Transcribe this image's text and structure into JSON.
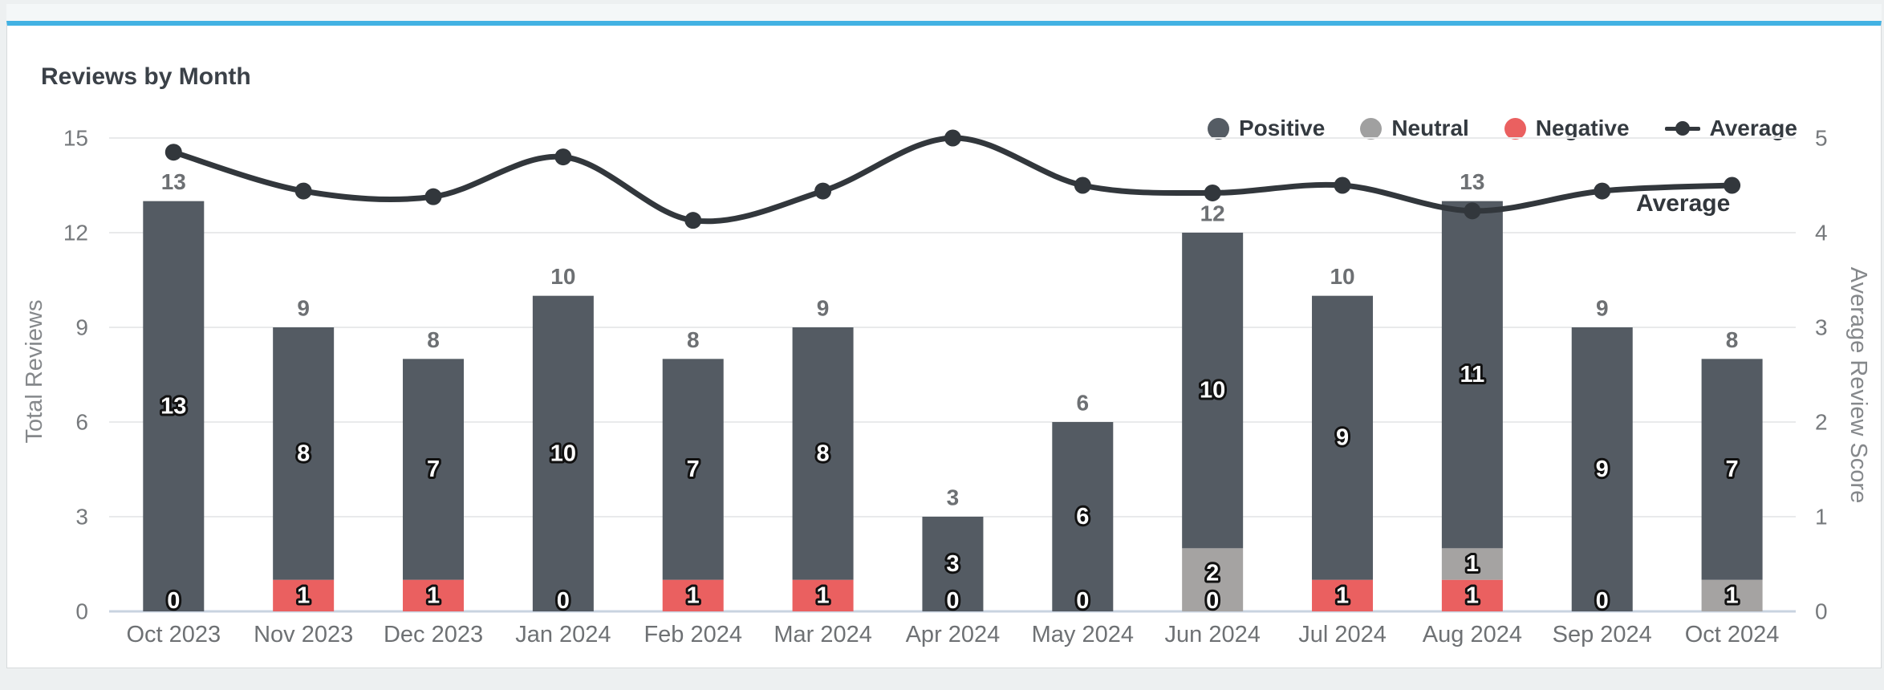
{
  "page": {
    "background": "#edf0f1"
  },
  "card": {
    "title": "Reviews by Month",
    "accent_color": "#42b2e3",
    "background": "#ffffff",
    "border_color": "#d7dadc"
  },
  "legend": {
    "items": [
      {
        "label": "Positive",
        "marker": "circle",
        "color": "#555c64"
      },
      {
        "label": "Neutral",
        "marker": "circle",
        "color": "#a0a0a0"
      },
      {
        "label": "Negative",
        "marker": "circle",
        "color": "#ea6060"
      },
      {
        "label": "Average",
        "marker": "line-dot",
        "color": "#32373c"
      }
    ]
  },
  "chart_data": {
    "type": "bar",
    "subtype": "stacked-bars-with-line-overlay",
    "title": "Reviews by Month",
    "categories": [
      "Oct 2023",
      "Nov 2023",
      "Dec 2023",
      "Jan 2024",
      "Feb 2024",
      "Mar 2024",
      "Apr 2024",
      "May 2024",
      "Jun 2024",
      "Jul 2024",
      "Aug 2024",
      "Sep 2024",
      "Oct 2024"
    ],
    "series": [
      {
        "name": "Positive",
        "color": "#545b63",
        "values": [
          13,
          8,
          7,
          10,
          7,
          8,
          3,
          6,
          10,
          9,
          11,
          9,
          7
        ]
      },
      {
        "name": "Neutral",
        "color": "#a5a3a2",
        "values": [
          0,
          0,
          0,
          0,
          0,
          0,
          0,
          0,
          2,
          0,
          1,
          0,
          1
        ]
      },
      {
        "name": "Negative",
        "color": "#ea6060",
        "values": [
          0,
          1,
          1,
          0,
          1,
          1,
          0,
          0,
          0,
          1,
          1,
          0,
          0
        ]
      }
    ],
    "stack_order_bottom_to_top": [
      "Negative",
      "Neutral",
      "Positive"
    ],
    "totals": [
      13,
      9,
      8,
      10,
      8,
      9,
      3,
      6,
      12,
      10,
      13,
      9,
      8
    ],
    "line_series": {
      "name": "Average",
      "color": "#32373c",
      "values": [
        4.85,
        4.44,
        4.38,
        4.8,
        4.13,
        4.44,
        5.0,
        4.5,
        4.42,
        4.5,
        4.23,
        4.44,
        4.5
      ],
      "end_label": "Average"
    },
    "neg_zero_label_shown": [
      true,
      false,
      false,
      true,
      false,
      false,
      true,
      true,
      true,
      false,
      false,
      true,
      false
    ],
    "y_left": {
      "title": "Total Reviews",
      "ticks": [
        0,
        3,
        6,
        9,
        12,
        15
      ],
      "max": 15
    },
    "y_right": {
      "title": "Average Review Score",
      "ticks": [
        0,
        1,
        2,
        3,
        4,
        5
      ],
      "max": 5
    },
    "grid": true,
    "legend_position": "top-right",
    "bar_label_style": {
      "fill": "#ffffff",
      "outline": "#111111"
    },
    "total_label_color": "#6d7073",
    "tick_label_color": "#76797c",
    "axis_title_color": "#85888b",
    "category_label_color": "#6e7174",
    "gridline_color": "#e9eaeb",
    "baseline_color": "#c9d3e0"
  }
}
